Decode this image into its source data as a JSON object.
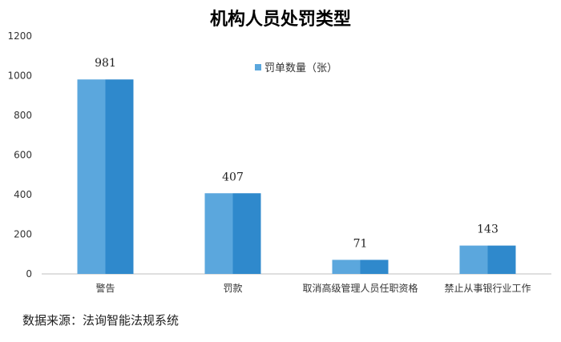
{
  "chart_data": {
    "type": "bar",
    "title": "机构人员处罚类型",
    "categories": [
      "警告",
      "罚款",
      "取消高级管理人员任职资格",
      "禁止从事银行业工作"
    ],
    "series": [
      {
        "name": "罚单数量（张）",
        "values": [
          981,
          407,
          71,
          143
        ]
      }
    ],
    "data_labels": [
      "981",
      "407",
      "71",
      "143"
    ],
    "ylim": [
      0,
      1200
    ],
    "yticks": [
      0,
      200,
      400,
      600,
      800,
      1000,
      1200
    ],
    "grid": false,
    "legend": "top-center",
    "colors": {
      "bar_light": "#5ba7dd",
      "bar_dark": "#2f89cc",
      "axis": "#bfbfbf"
    }
  },
  "source": "数据来源：法询智能法规系统"
}
